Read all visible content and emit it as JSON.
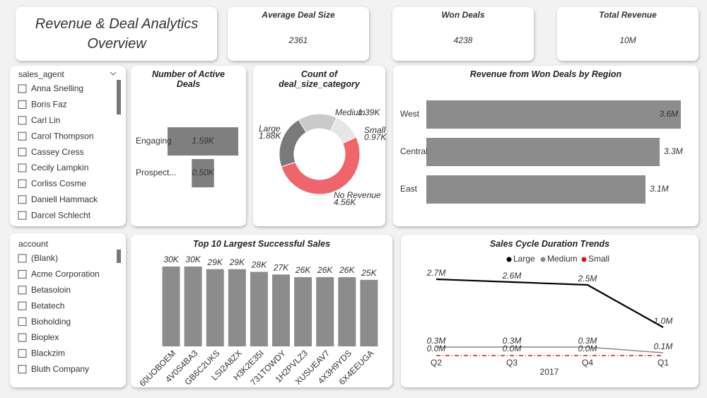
{
  "title": "Revenue & Deal Analytics Overview",
  "cards": [
    {
      "label": "Average Deal Size",
      "value": 2361
    },
    {
      "label": "Won Deals",
      "value": 4238
    },
    {
      "label": "Total Revenue",
      "value": "10M"
    }
  ],
  "slicers": [
    {
      "field": "sales_agent",
      "items": [
        "Anna Snelling",
        "Boris Faz",
        "Carl Lin",
        "Carol Thompson",
        "Cassey Cress",
        "Cecily Lampkin",
        "Corliss Cosme",
        "Daniell Hammack",
        "Darcel Schlecht"
      ]
    },
    {
      "field": "account",
      "items": [
        "(Blank)",
        "Acme Corporation",
        "Betasoloin",
        "Betatech",
        "Bioholding",
        "Bioplex",
        "Blackzim",
        "Bluth Company"
      ]
    }
  ],
  "chart_data": [
    {
      "type": "funnel",
      "title": "Number of Active Deals",
      "categories": [
        "Engaging",
        "Prospect..."
      ],
      "values": [
        1590,
        500
      ],
      "value_labels": [
        "1.59K",
        "0.50K"
      ],
      "color": "#7f7f7f"
    },
    {
      "type": "donut",
      "title": "Count of deal_size_category",
      "categories": [
        "Medium",
        "Small",
        "No Revenue",
        "Large"
      ],
      "values": [
        1390,
        970,
        4560,
        1880
      ],
      "value_labels": [
        "1.39K",
        "0.97K",
        "4.56K",
        "1.88K"
      ],
      "colors": [
        "#c9c9c9",
        "#e6e6e6",
        "#f0646b",
        "#7a7a7a"
      ]
    },
    {
      "type": "hbar",
      "title": "Revenue from Won Deals by Region",
      "categories": [
        "West",
        "Central",
        "East"
      ],
      "values": [
        3600000,
        3300000,
        3100000
      ],
      "value_labels": [
        "3.6M",
        "3.3M",
        "3.1M"
      ],
      "color": "#8c8c8c"
    },
    {
      "type": "bar",
      "title": "Top 10 Largest Successful Sales",
      "categories": [
        "60UOBOEM",
        "4V0S4BA3",
        "GB6C2UKS",
        "LSI2A8ZX",
        "H3K2E35I",
        "731TOWDY",
        "1H2PVLZ3",
        "XUSUEAV7",
        "4X3H9YDS",
        "6X4EEUGA"
      ],
      "values": [
        30000,
        30000,
        29000,
        29000,
        28000,
        27000,
        26000,
        26000,
        26000,
        25000
      ],
      "value_labels": [
        "30K",
        "30K",
        "29K",
        "29K",
        "28K",
        "27K",
        "26K",
        "26K",
        "26K",
        "25K"
      ],
      "color": "#8c8c8c"
    },
    {
      "type": "line",
      "title": "Sales Cycle Duration Trends",
      "categories": [
        "Q2",
        "Q3",
        "Q4",
        "Q1"
      ],
      "x_label": "2017",
      "series": [
        {
          "name": "Large",
          "color": "#000000",
          "values": [
            2700000,
            2600000,
            2500000,
            1000000
          ],
          "value_labels": [
            "2.7M",
            "2.6M",
            "2.5M",
            "1.0M"
          ]
        },
        {
          "name": "Medium",
          "color": "#888888",
          "values": [
            300000,
            300000,
            300000,
            100000
          ],
          "value_labels": [
            "0.3M",
            "0.3M",
            "0.3M",
            "0.1M"
          ]
        },
        {
          "name": "Small",
          "color": "#e01010",
          "values": [
            0,
            0,
            0,
            0
          ],
          "value_labels": [
            "0.0M",
            "0.0M",
            "0.0M",
            null
          ]
        }
      ]
    }
  ]
}
